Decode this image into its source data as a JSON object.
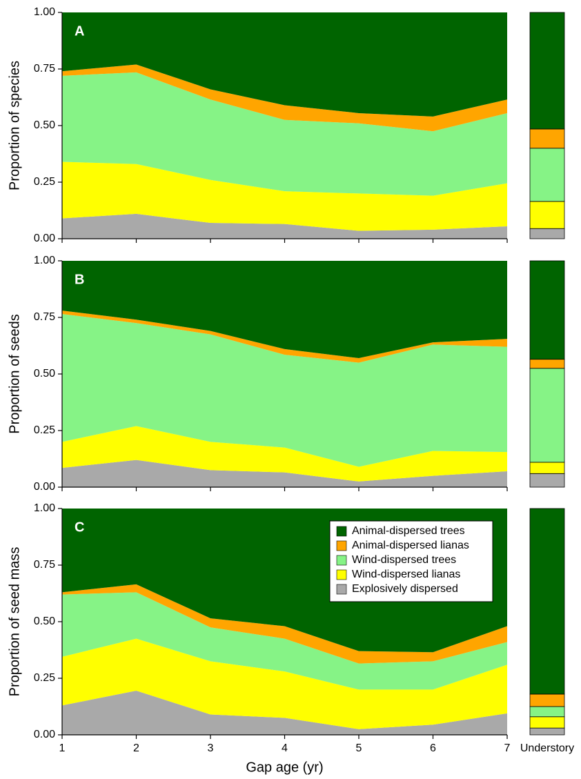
{
  "chart_data": [
    {
      "type": "area",
      "stacked": true,
      "panel_label": "A",
      "ylabel": "Proportion of species",
      "x": [
        1,
        2,
        3,
        4,
        5,
        6,
        7
      ],
      "xlim": [
        1,
        7
      ],
      "xticks": [
        1,
        2,
        3,
        4,
        5,
        6,
        7
      ],
      "xtick_labels": false,
      "ylim": [
        0,
        1
      ],
      "yticks": [
        {
          "value": 0,
          "label": "0.00"
        },
        {
          "value": 0.25,
          "label": "0.25"
        },
        {
          "value": 0.5,
          "label": "0.50"
        },
        {
          "value": 0.75,
          "label": "0.75"
        },
        {
          "value": 1,
          "label": "1.00"
        }
      ],
      "series": [
        {
          "color": "#a9a9a9",
          "values": [
            0.09,
            0.11,
            0.07,
            0.065,
            0.035,
            0.04,
            0.055
          ],
          "understory": 0.045
        },
        {
          "color": "#ffff00",
          "values": [
            0.25,
            0.22,
            0.19,
            0.145,
            0.165,
            0.15,
            0.19
          ],
          "understory": 0.12
        },
        {
          "color": "#86f386",
          "values": [
            0.38,
            0.405,
            0.355,
            0.315,
            0.31,
            0.285,
            0.31
          ],
          "understory": 0.235
        },
        {
          "color": "#ffa500",
          "values": [
            0.02,
            0.035,
            0.045,
            0.065,
            0.045,
            0.065,
            0.06
          ],
          "understory": 0.085
        },
        {
          "color": "#006400",
          "values": [
            0.26,
            0.23,
            0.34,
            0.41,
            0.445,
            0.46,
            0.385
          ],
          "understory": 0.515
        }
      ]
    },
    {
      "type": "area",
      "stacked": true,
      "panel_label": "B",
      "ylabel": "Proportion of seeds",
      "x": [
        1,
        2,
        3,
        4,
        5,
        6,
        7
      ],
      "xlim": [
        1,
        7
      ],
      "xticks": [
        1,
        2,
        3,
        4,
        5,
        6,
        7
      ],
      "xtick_labels": false,
      "ylim": [
        0,
        1
      ],
      "yticks": [
        {
          "value": 0,
          "label": "0.00"
        },
        {
          "value": 0.25,
          "label": "0.25"
        },
        {
          "value": 0.5,
          "label": "0.50"
        },
        {
          "value": 0.75,
          "label": "0.75"
        },
        {
          "value": 1,
          "label": "1.00"
        }
      ],
      "series": [
        {
          "color": "#a9a9a9",
          "values": [
            0.085,
            0.12,
            0.075,
            0.065,
            0.025,
            0.05,
            0.07
          ],
          "understory": 0.06
        },
        {
          "color": "#ffff00",
          "values": [
            0.115,
            0.15,
            0.125,
            0.11,
            0.065,
            0.11,
            0.085
          ],
          "understory": 0.05
        },
        {
          "color": "#86f386",
          "values": [
            0.565,
            0.455,
            0.475,
            0.41,
            0.46,
            0.47,
            0.465
          ],
          "understory": 0.415
        },
        {
          "color": "#ffa500",
          "values": [
            0.015,
            0.015,
            0.015,
            0.025,
            0.02,
            0.01,
            0.035
          ],
          "understory": 0.04
        },
        {
          "color": "#006400",
          "values": [
            0.22,
            0.26,
            0.31,
            0.39,
            0.43,
            0.36,
            0.345
          ],
          "understory": 0.435
        }
      ]
    },
    {
      "type": "area",
      "stacked": true,
      "panel_label": "C",
      "ylabel": "Proportion of seed mass",
      "xlabel": "Gap age (yr)",
      "understory_label": "Understory",
      "x": [
        1,
        2,
        3,
        4,
        5,
        6,
        7
      ],
      "xlim": [
        1,
        7
      ],
      "xticks": [
        1,
        2,
        3,
        4,
        5,
        6,
        7
      ],
      "xtick_labels": true,
      "ylim": [
        0,
        1
      ],
      "yticks": [
        {
          "value": 0,
          "label": "0.00"
        },
        {
          "value": 0.25,
          "label": "0.25"
        },
        {
          "value": 0.5,
          "label": "0.50"
        },
        {
          "value": 0.75,
          "label": "0.75"
        },
        {
          "value": 1,
          "label": "1.00"
        }
      ],
      "legend": "upper right",
      "series": [
        {
          "name": "Explosively dispersed",
          "color": "#a9a9a9",
          "values": [
            0.13,
            0.195,
            0.09,
            0.075,
            0.025,
            0.045,
            0.095
          ],
          "understory": 0.03
        },
        {
          "name": "Wind-dispersed lianas",
          "color": "#ffff00",
          "values": [
            0.215,
            0.23,
            0.235,
            0.205,
            0.175,
            0.155,
            0.215
          ],
          "understory": 0.05
        },
        {
          "name": "Wind-dispersed trees",
          "color": "#86f386",
          "values": [
            0.275,
            0.205,
            0.15,
            0.145,
            0.115,
            0.125,
            0.1
          ],
          "understory": 0.045
        },
        {
          "name": "Animal-dispersed lianas",
          "color": "#ffa500",
          "values": [
            0.01,
            0.035,
            0.04,
            0.055,
            0.055,
            0.04,
            0.07
          ],
          "understory": 0.055
        },
        {
          "name": "Animal-dispersed trees",
          "color": "#006400",
          "values": [
            0.37,
            0.335,
            0.485,
            0.52,
            0.63,
            0.635,
            0.52
          ],
          "understory": 0.82
        }
      ]
    }
  ]
}
